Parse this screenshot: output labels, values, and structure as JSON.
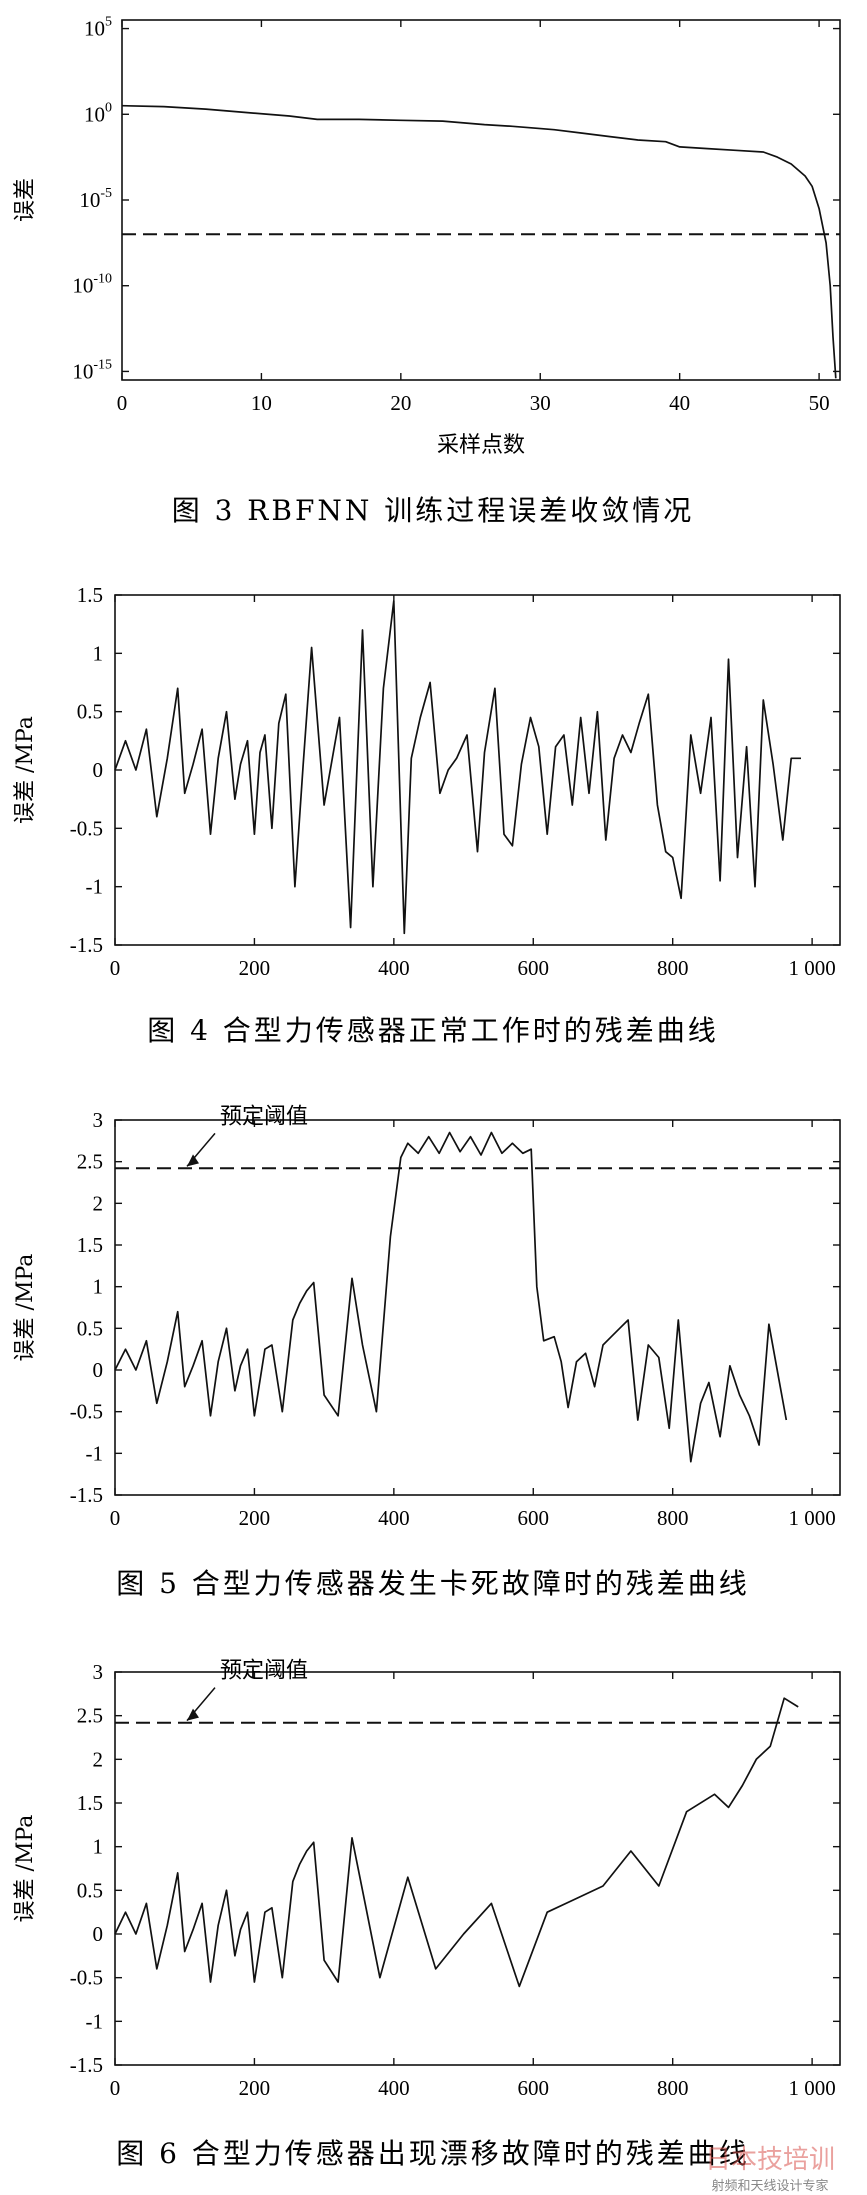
{
  "charts": [
    {
      "type": "line",
      "caption": "图 3   RBFNN 训练过程误差收敛情况",
      "xlabel": "采样点数",
      "ylabel": "误差",
      "x_ticks": [
        "0",
        "10",
        "20",
        "30",
        "40",
        "50"
      ],
      "y_ticks": [
        {
          "base": "10",
          "exp": "5"
        },
        {
          "base": "10",
          "exp": "0"
        },
        {
          "base": "10",
          "exp": "-5"
        },
        {
          "base": "10",
          "exp": "-10"
        },
        {
          "base": "10",
          "exp": "-15"
        }
      ],
      "y_scale": "log",
      "xlim": [
        0,
        51.5
      ],
      "ylim_log10": [
        -15.5,
        5.5
      ],
      "grid": false,
      "chart_data": {
        "type": "line",
        "series": [
          {
            "x": [
              0,
              3,
              6,
              9,
              12,
              14,
              17,
              20,
              23,
              26,
              28,
              31,
              33,
              35,
              37,
              39,
              40,
              42,
              44,
              46,
              47,
              48,
              49,
              49.5,
              50,
              50.5,
              50.8,
              51,
              51.2
            ],
            "log10_y": [
              0.5,
              0.45,
              0.3,
              0.1,
              -0.1,
              -0.3,
              -0.3,
              -0.35,
              -0.4,
              -0.6,
              -0.7,
              -0.9,
              -1.1,
              -1.3,
              -1.5,
              -1.6,
              -1.9,
              -2.0,
              -2.1,
              -2.2,
              -2.5,
              -2.9,
              -3.6,
              -4.2,
              -5.5,
              -7.5,
              -10,
              -13,
              -15.4
            ]
          },
          {
            "x": [
              0,
              51.5
            ],
            "log10_y": [
              -7.0,
              -7.0
            ],
            "style": "dashed"
          }
        ]
      }
    },
    {
      "type": "line",
      "caption": "图 4   合型力传感器正常工作时的残差曲线",
      "xlabel": "",
      "ylabel": "误差 /MPa",
      "x_ticks": [
        "0",
        "200",
        "400",
        "600",
        "800",
        "1 000"
      ],
      "y_ticks": [
        "1.5",
        "1",
        "0.5",
        "0",
        "-0.5",
        "-1",
        "-1.5"
      ],
      "xlim": [
        0,
        1040
      ],
      "ylim": [
        -1.5,
        1.5
      ],
      "grid": false,
      "chart_data": {
        "type": "line",
        "series": [
          {
            "x": [
              0,
              15,
              30,
              45,
              60,
              75,
              90,
              100,
              112,
              125,
              137,
              148,
              160,
              172,
              180,
              190,
              200,
              208,
              215,
              225,
              235,
              245,
              258,
              270,
              282,
              300,
              322,
              338,
              355,
              370,
              385,
              400,
              415,
              425,
              438,
              452,
              466,
              478,
              490,
              505,
              520,
              530,
              545,
              558,
              570,
              583,
              596,
              608,
              620,
              632,
              644,
              656,
              668,
              680,
              692,
              704,
              716,
              728,
              740,
              752,
              765,
              778,
              790,
              800,
              812,
              826,
              840,
              855,
              868,
              880,
              893,
              906,
              918,
              930,
              944,
              958,
              970,
              984
            ],
            "y": [
              0,
              0.25,
              0,
              0.35,
              -0.4,
              0.1,
              0.7,
              -0.2,
              0.05,
              0.35,
              -0.55,
              0.1,
              0.5,
              -0.25,
              0.05,
              0.25,
              -0.55,
              0.15,
              0.3,
              -0.5,
              0.4,
              0.65,
              -1.0,
              0.05,
              1.05,
              -0.3,
              0.45,
              -1.35,
              1.2,
              -1.0,
              0.7,
              1.45,
              -1.4,
              0.1,
              0.45,
              0.75,
              -0.2,
              0,
              0.1,
              0.3,
              -0.7,
              0.15,
              0.7,
              -0.55,
              -0.65,
              0.05,
              0.45,
              0.2,
              -0.55,
              0.2,
              0.3,
              -0.3,
              0.45,
              -0.2,
              0.5,
              -0.6,
              0.1,
              0.3,
              0.15,
              0.4,
              0.65,
              -0.3,
              -0.7,
              -0.75,
              -1.1,
              0.3,
              -0.2,
              0.45,
              -0.95,
              0.95,
              -0.75,
              0.2,
              -1.0,
              0.6,
              0.05,
              -0.6,
              0.1,
              0.1
            ]
          }
        ]
      }
    },
    {
      "type": "line",
      "caption": "图 5   合型力传感器发生卡死故障时的残差曲线",
      "xlabel": "",
      "ylabel": "误差 /MPa",
      "annotation": "预定阈值",
      "x_ticks": [
        "0",
        "200",
        "400",
        "600",
        "800",
        "1 000"
      ],
      "y_ticks": [
        "3",
        "2.5",
        "2",
        "1.5",
        "1",
        "0.5",
        "0",
        "-0.5",
        "-1",
        "-1.5"
      ],
      "xlim": [
        0,
        1040
      ],
      "ylim": [
        -1.5,
        3
      ],
      "grid": false,
      "chart_data": {
        "type": "line",
        "series": [
          {
            "x": [
              0,
              15,
              30,
              45,
              60,
              75,
              90,
              100,
              112,
              125,
              137,
              148,
              160,
              172,
              180,
              190,
              200,
              215,
              225,
              240,
              255,
              265,
              275,
              285,
              300,
              320,
              340,
              355,
              375,
              395,
              410,
              420,
              435,
              450,
              465,
              480,
              495,
              510,
              525,
              540,
              555,
              570,
              585,
              597,
              605,
              615,
              630,
              640,
              650,
              662,
              675,
              688,
              700,
              712,
              724,
              736,
              750,
              765,
              780,
              795,
              808,
              826,
              840,
              852,
              868,
              882,
              896,
              910,
              924,
              938,
              952,
              963
            ],
            "y": [
              0,
              0.25,
              0,
              0.35,
              -0.4,
              0.1,
              0.7,
              -0.2,
              0.05,
              0.35,
              -0.55,
              0.1,
              0.5,
              -0.25,
              0.05,
              0.25,
              -0.55,
              0.25,
              0.3,
              -0.5,
              0.6,
              0.8,
              0.95,
              1.05,
              -0.3,
              -0.55,
              1.1,
              0.3,
              -0.5,
              1.6,
              2.55,
              2.72,
              2.6,
              2.8,
              2.6,
              2.85,
              2.62,
              2.8,
              2.58,
              2.85,
              2.6,
              2.72,
              2.6,
              2.65,
              1.0,
              0.35,
              0.4,
              0.1,
              -0.45,
              0.1,
              0.2,
              -0.2,
              0.3,
              0.4,
              0.5,
              0.6,
              -0.6,
              0.3,
              0.15,
              -0.7,
              0.6,
              -1.1,
              -0.4,
              -0.15,
              -0.8,
              0.05,
              -0.3,
              -0.55,
              -0.9,
              0.55,
              -0.1,
              -0.6
            ]
          },
          {
            "x": [
              0,
              1040
            ],
            "y": [
              2.42,
              2.42
            ],
            "style": "dashed",
            "name": "预定阈值"
          }
        ]
      }
    },
    {
      "type": "line",
      "caption": "图 6   合型力传感器出现漂移故障时的残差曲线",
      "xlabel": "",
      "ylabel": "误差 /MPa",
      "annotation": "预定阈值",
      "x_ticks": [
        "0",
        "200",
        "400",
        "600",
        "800",
        "1 000"
      ],
      "y_ticks": [
        "3",
        "2.5",
        "2",
        "1.5",
        "1",
        "0.5",
        "0",
        "-0.5",
        "-1",
        "-1.5"
      ],
      "xlim": [
        0,
        1040
      ],
      "ylim": [
        -1.5,
        3
      ],
      "grid": false,
      "chart_data": {
        "type": "line",
        "series": [
          {
            "x": [
              0,
              15,
              30,
              45,
              60,
              75,
              90,
              100,
              112,
              125,
              137,
              148,
              160,
              172,
              180,
              190,
              200,
              215,
              225,
              240,
              255,
              265,
              275,
              285,
              300,
              320,
              340,
              360,
              380,
              420,
              460,
              500,
              540,
              580,
              620,
              660,
              700,
              740,
              780,
              820,
              860,
              880,
              900,
              920,
              940,
              960,
              980
            ],
            "y": [
              0,
              0.25,
              0,
              0.35,
              -0.4,
              0.1,
              0.7,
              -0.2,
              0.05,
              0.35,
              -0.55,
              0.1,
              0.5,
              -0.25,
              0.05,
              0.25,
              -0.55,
              0.25,
              0.3,
              -0.5,
              0.6,
              0.8,
              0.95,
              1.05,
              -0.3,
              -0.55,
              1.1,
              0.3,
              -0.5,
              0.65,
              -0.4,
              0.0,
              0.35,
              -0.6,
              0.25,
              0.4,
              0.55,
              0.95,
              0.55,
              1.4,
              1.6,
              1.45,
              1.7,
              2.0,
              2.15,
              2.7,
              2.6
            ]
          },
          {
            "x": [
              0,
              1040
            ],
            "y": [
              2.42,
              2.42
            ],
            "style": "dashed",
            "name": "预定阈值"
          }
        ]
      }
    }
  ],
  "watermark": {
    "line1": "日本技培训",
    "line2": "射频和天线设计专家"
  }
}
